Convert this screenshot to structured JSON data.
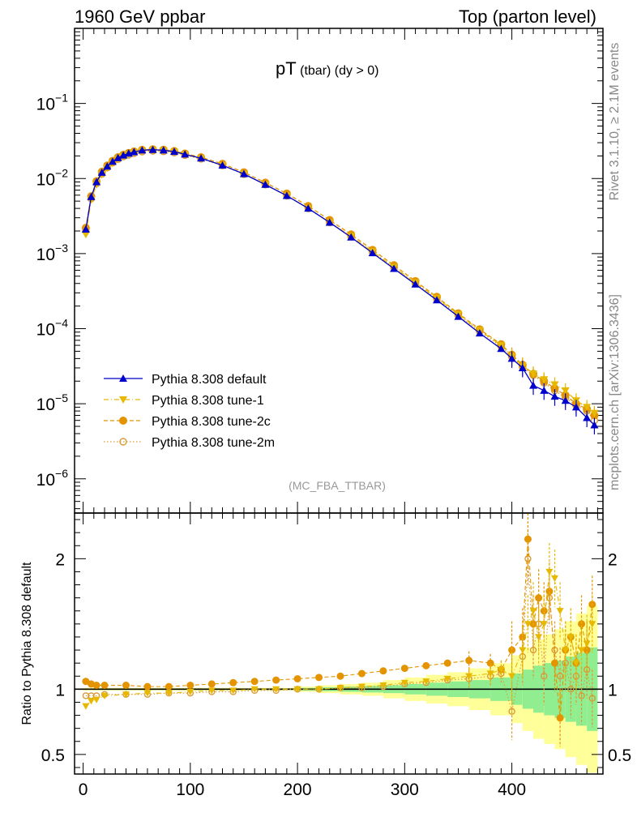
{
  "header": {
    "left": "1960 GeV ppbar",
    "right": "Top (parton level)"
  },
  "side_labels": {
    "rivet": "Rivet 3.1.10, ≥ 2.1M events",
    "mcplots": "mcplots.cern.ch [arXiv:1306.3436]"
  },
  "plot_title": {
    "main": "pT",
    "sub": " (tbar) (dy > 0)"
  },
  "analysis_label": "(MC_FBA_TTBAR)",
  "ratio_ylabel": "Ratio to Pythia 8.308 default",
  "colors": {
    "default": "#0000cc",
    "tune1": "#e6b800",
    "tune2c": "#e39400",
    "tune2m": "#d99a3a",
    "band_green": "#90ee90",
    "band_yellow": "#ffff99"
  },
  "chart_data": [
    {
      "type": "scatter",
      "panel": "main",
      "yscale": "log",
      "xlim": [
        -8,
        485
      ],
      "ylim": [
        3.5e-07,
        1.0
      ],
      "x_ticks": [
        0,
        100,
        200,
        300,
        400
      ],
      "y_ticks": [
        {
          "value": 1e-06,
          "base": "10",
          "exp": "−6"
        },
        {
          "value": 1e-05,
          "base": "10",
          "exp": "−5"
        },
        {
          "value": 0.0001,
          "base": "10",
          "exp": "−4"
        },
        {
          "value": 0.001,
          "base": "10",
          "exp": "−3"
        },
        {
          "value": 0.01,
          "base": "10",
          "exp": "−2"
        },
        {
          "value": 0.1,
          "base": "10",
          "exp": "−1"
        }
      ],
      "legend_position": "bottom-left",
      "series": [
        {
          "name": "Pythia 8.308 default",
          "key": "default",
          "marker": "triangle-up",
          "line": "solid",
          "x": [
            2.5,
            7.5,
            12.5,
            17.5,
            22.5,
            27.5,
            32.5,
            37.5,
            42.5,
            47.5,
            55,
            65,
            75,
            85,
            95,
            110,
            130,
            150,
            170,
            190,
            210,
            230,
            250,
            270,
            290,
            310,
            330,
            350,
            370,
            390,
            400,
            410,
            420,
            430,
            440,
            450,
            460,
            470,
            477
          ],
          "y": [
            0.0021,
            0.0057,
            0.009,
            0.012,
            0.0145,
            0.0168,
            0.0188,
            0.0204,
            0.0216,
            0.0226,
            0.0238,
            0.0242,
            0.0238,
            0.0228,
            0.021,
            0.0186,
            0.015,
            0.0115,
            0.0083,
            0.0059,
            0.004,
            0.0026,
            0.00165,
            0.00102,
            0.00063,
            0.00039,
            0.00024,
            0.000145,
            8.7e-05,
            5.4e-05,
            4e-05,
            3e-05,
            1.75e-05,
            1.5e-05,
            1.25e-05,
            1.1e-05,
            9e-06,
            6.5e-06,
            5.2e-06
          ]
        },
        {
          "name": "Pythia 8.308 tune-1",
          "key": "tune1",
          "marker": "triangle-down",
          "line": "dashdot",
          "x": [
            2.5,
            7.5,
            12.5,
            17.5,
            22.5,
            27.5,
            32.5,
            37.5,
            42.5,
            47.5,
            55,
            65,
            75,
            85,
            95,
            110,
            130,
            150,
            170,
            190,
            210,
            230,
            250,
            270,
            290,
            310,
            330,
            350,
            370,
            390,
            400,
            410,
            420,
            430,
            440,
            450,
            460,
            470,
            477
          ],
          "y": [
            0.0018,
            0.0052,
            0.0083,
            0.0113,
            0.0138,
            0.0161,
            0.0181,
            0.0197,
            0.021,
            0.022,
            0.0232,
            0.0237,
            0.0234,
            0.0225,
            0.0208,
            0.0185,
            0.015,
            0.0115,
            0.0083,
            0.0059,
            0.004,
            0.0026,
            0.0017,
            0.00106,
            0.00066,
            0.00041,
            0.000255,
            0.000155,
            9.5e-05,
            6e-05,
            4.3e-05,
            3.2e-05,
            2.5e-05,
            2.1e-05,
            1.8e-05,
            1.5e-05,
            1.1e-05,
            9e-06,
            7.5e-06
          ]
        },
        {
          "name": "Pythia 8.308 tune-2c",
          "key": "tune2c",
          "marker": "circle",
          "line": "dashed",
          "x": [
            2.5,
            7.5,
            12.5,
            17.5,
            22.5,
            27.5,
            32.5,
            37.5,
            42.5,
            47.5,
            55,
            65,
            75,
            85,
            95,
            110,
            130,
            150,
            170,
            190,
            210,
            230,
            250,
            270,
            290,
            310,
            330,
            350,
            370,
            390,
            400,
            410,
            420,
            430,
            440,
            450,
            460,
            470,
            477
          ],
          "y": [
            0.0022,
            0.0058,
            0.0092,
            0.0123,
            0.0149,
            0.0172,
            0.0192,
            0.0207,
            0.0219,
            0.0229,
            0.0241,
            0.0245,
            0.0242,
            0.0232,
            0.0215,
            0.0192,
            0.0157,
            0.0121,
            0.0088,
            0.0063,
            0.0043,
            0.0028,
            0.0018,
            0.00112,
            0.0007,
            0.00043,
            0.000265,
            0.00016,
            9.8e-05,
            6.2e-05,
            4.5e-05,
            3.3e-05,
            2.5e-05,
            2e-05,
            1.6e-05,
            1.3e-05,
            1e-05,
            8.5e-06,
            7e-06
          ]
        },
        {
          "name": "Pythia 8.308 tune-2m",
          "key": "tune2m",
          "marker": "circle-open",
          "line": "dotted",
          "x": [
            2.5,
            7.5,
            12.5,
            17.5,
            22.5,
            27.5,
            32.5,
            37.5,
            42.5,
            47.5,
            55,
            65,
            75,
            85,
            95,
            110,
            130,
            150,
            170,
            190,
            210,
            230,
            250,
            270,
            290,
            310,
            330,
            350,
            370,
            390,
            400,
            410,
            420,
            430,
            440,
            450,
            460,
            470,
            477
          ],
          "y": [
            0.002,
            0.0054,
            0.0086,
            0.0115,
            0.014,
            0.0162,
            0.0181,
            0.0196,
            0.0207,
            0.0217,
            0.0228,
            0.0233,
            0.023,
            0.0221,
            0.0205,
            0.0183,
            0.0149,
            0.0114,
            0.0083,
            0.0059,
            0.004,
            0.0026,
            0.00168,
            0.00104,
            0.00065,
            0.0004,
            0.00025,
            0.00015,
            9.2e-05,
            5.8e-05,
            4.2e-05,
            3.1e-05,
            2.4e-05,
            1.9e-05,
            1.5e-05,
            1.2e-05,
            9.5e-06,
            8e-06,
            6e-06
          ]
        }
      ]
    },
    {
      "type": "scatter",
      "panel": "ratio",
      "ylabel": "Ratio to Pythia 8.308 default",
      "xlim": [
        -8,
        485
      ],
      "ylim": [
        0.35,
        2.35
      ],
      "x_ticks": [
        0,
        100,
        200,
        300,
        400
      ],
      "y_ticks": [
        0.5,
        1,
        2
      ],
      "y_tick_labels": [
        "0.5",
        "1",
        "2"
      ],
      "reference_line": 1.0,
      "band_x_edges": [
        0,
        200,
        220,
        240,
        260,
        280,
        300,
        320,
        340,
        360,
        380,
        400,
        410,
        420,
        430,
        440,
        450,
        460,
        470,
        480
      ],
      "band_green_half_width": [
        0.005,
        0.01,
        0.015,
        0.02,
        0.025,
        0.03,
        0.04,
        0.05,
        0.06,
        0.07,
        0.09,
        0.12,
        0.15,
        0.18,
        0.2,
        0.22,
        0.25,
        0.28,
        0.32
      ],
      "band_yellow_half_width": [
        0.01,
        0.02,
        0.03,
        0.04,
        0.05,
        0.07,
        0.09,
        0.11,
        0.13,
        0.16,
        0.2,
        0.26,
        0.32,
        0.38,
        0.42,
        0.46,
        0.52,
        0.58,
        0.64
      ],
      "series": [
        {
          "key": "tune1",
          "x": [
            2.5,
            7.5,
            12.5,
            20,
            40,
            60,
            80,
            100,
            120,
            140,
            160,
            180,
            200,
            220,
            240,
            260,
            280,
            300,
            320,
            340,
            360,
            380,
            390,
            400,
            410,
            415,
            420,
            425,
            430,
            435,
            440,
            445,
            450,
            455,
            460,
            465,
            470,
            475
          ],
          "y": [
            0.87,
            0.91,
            0.92,
            0.95,
            0.96,
            0.97,
            0.97,
            0.98,
            0.99,
            0.99,
            1.0,
            1.0,
            1.0,
            1.0,
            1.01,
            1.02,
            1.03,
            1.05,
            1.06,
            1.08,
            1.1,
            1.12,
            1.15,
            1.1,
            1.3,
            1.5,
            1.6,
            1.4,
            1.5,
            1.9,
            1.85,
            1.6,
            1.3,
            1.4,
            1.2,
            1.3,
            1.35,
            1.5
          ]
        },
        {
          "key": "tune2c",
          "x": [
            2.5,
            7.5,
            12.5,
            20,
            40,
            60,
            80,
            100,
            120,
            140,
            160,
            180,
            200,
            220,
            240,
            260,
            280,
            300,
            320,
            340,
            360,
            380,
            390,
            400,
            410,
            415,
            420,
            425,
            430,
            435,
            440,
            445,
            450,
            455,
            460,
            465,
            470,
            475
          ],
          "y": [
            1.06,
            1.04,
            1.03,
            1.03,
            1.03,
            1.02,
            1.02,
            1.03,
            1.04,
            1.05,
            1.06,
            1.07,
            1.08,
            1.09,
            1.1,
            1.12,
            1.14,
            1.16,
            1.18,
            1.2,
            1.22,
            1.2,
            1.15,
            1.3,
            1.4,
            2.15,
            1.5,
            1.7,
            1.6,
            1.75,
            1.2,
            0.78,
            1.3,
            1.4,
            1.2,
            1.5,
            1.3,
            1.65
          ]
        },
        {
          "key": "tune2m",
          "x": [
            2.5,
            7.5,
            12.5,
            20,
            40,
            60,
            80,
            100,
            120,
            140,
            160,
            180,
            200,
            220,
            240,
            260,
            280,
            300,
            320,
            340,
            360,
            380,
            390,
            400,
            410,
            415,
            420,
            425,
            430,
            435,
            440,
            445,
            450,
            455,
            460,
            465,
            470,
            475
          ],
          "y": [
            0.95,
            0.95,
            0.95,
            0.96,
            0.96,
            0.96,
            0.97,
            0.97,
            0.98,
            0.98,
            0.99,
            0.99,
            1.0,
            1.0,
            1.01,
            1.01,
            1.02,
            1.04,
            1.05,
            1.07,
            1.08,
            1.1,
            1.12,
            0.83,
            1.25,
            2.0,
            1.3,
            1.5,
            1.1,
            1.7,
            1.3,
            1.1,
            1.2,
            1.0,
            1.1,
            0.95,
            1.15,
            0.93
          ]
        }
      ]
    }
  ]
}
